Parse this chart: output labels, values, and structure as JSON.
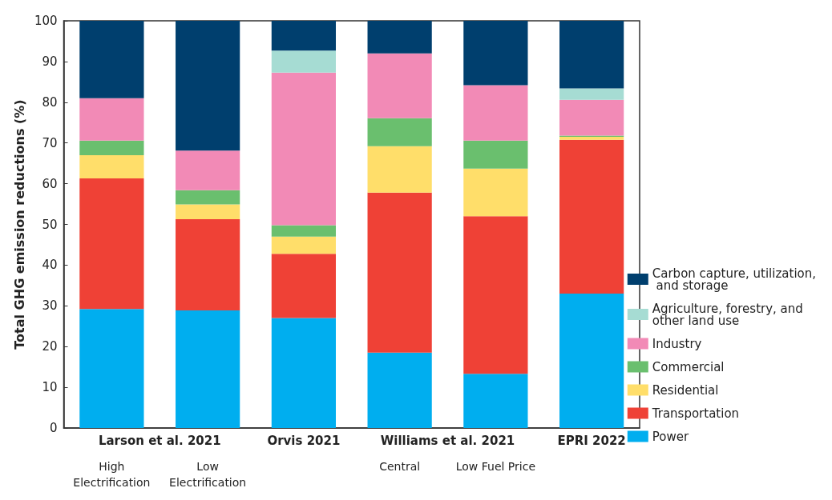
{
  "chart_data": {
    "type": "bar",
    "stacked": true,
    "ylabel": "Total GHG emission reductions (%)",
    "categories": [
      "High\nElectrification",
      "Low\nElectrification",
      null,
      "Central",
      "Low Fuel Price",
      null
    ],
    "annotations": [
      "Larson et al. 2021",
      "Orvis 2021",
      "Williams et al. 2021",
      "EPRI 2022"
    ],
    "series": [
      {
        "name": "Power",
        "color": "#00aeef",
        "values": [
          29.2,
          28.9,
          27,
          18.5,
          13.3,
          33
        ]
      },
      {
        "name": "Transportation",
        "color": "#ef4136",
        "values": [
          32.1,
          22.4,
          15.8,
          39.3,
          38.7,
          37.8
        ]
      },
      {
        "name": "Residential",
        "color": "#ffde6a",
        "values": [
          5.7,
          3.6,
          4.2,
          11.4,
          11.7,
          0.7
        ]
      },
      {
        "name": "Commercial",
        "color": "#6abf6e",
        "values": [
          3.6,
          3.5,
          2.8,
          6.9,
          6.9,
          0.3
        ]
      },
      {
        "name": "Industry",
        "color": "#f28ab6",
        "values": [
          10.4,
          9.7,
          37.5,
          15.9,
          13.6,
          8.8
        ]
      },
      {
        "name": "Agriculture, forestry, and other land use",
        "color": "#a6dcd3",
        "values": [
          null,
          null,
          5.4,
          null,
          null,
          2.8
        ]
      },
      {
        "name": "Carbon capture, utilization, and storage",
        "color": "#003f6e",
        "values": [
          19,
          31.9,
          7.3,
          8,
          15.8,
          16.6
        ]
      }
    ],
    "ylim": [
      0,
      100
    ],
    "yticks": [
      0,
      10,
      20,
      30,
      40,
      50,
      60,
      70,
      80,
      90,
      100
    ],
    "grid": false,
    "legend": "right"
  }
}
